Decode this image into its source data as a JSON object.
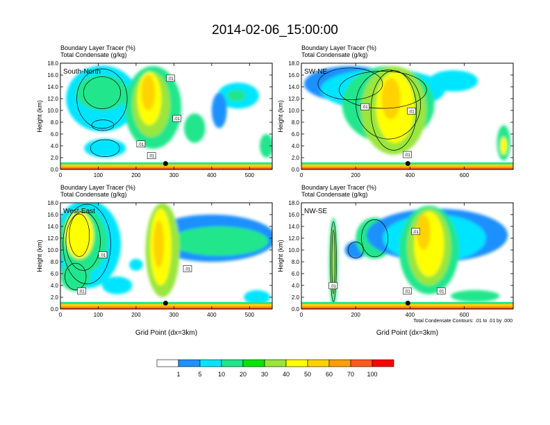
{
  "figure": {
    "title": "2014-02-06_15:00:00",
    "contour_note": "Total Condensate Contours: .01 to .01 by .000"
  },
  "colorbar": {
    "colors": [
      "#ffffff",
      "#1e90ff",
      "#00e5ff",
      "#20e68c",
      "#00e600",
      "#9ae63c",
      "#ffff00",
      "#ffd200",
      "#ffa000",
      "#ff5a1e",
      "#ff0000"
    ],
    "labels": [
      "1",
      "5",
      "10",
      "20",
      "30",
      "40",
      "50",
      "60",
      "70",
      "100"
    ]
  },
  "chart_data": [
    {
      "type": "heatmap",
      "panel_label": "South-North",
      "title_line1": "Boundary Layer Tracer   (%)",
      "title_line2": "Total Condensate   (g/kg)",
      "ylabel": "Height (km)",
      "xlabel": "",
      "xlim": [
        0,
        560
      ],
      "ylim": [
        0,
        18
      ],
      "xticks": [
        0,
        100,
        200,
        300,
        400,
        500
      ],
      "yticks": [
        "0.0",
        "2.0",
        "4.0",
        "6.0",
        "8.0",
        "10.0",
        "12.0",
        "14.0",
        "16.0",
        "18.0"
      ],
      "contour_labels": [
        ".01",
        ".01",
        ".01",
        ".01"
      ],
      "marker": {
        "x": 278,
        "y": 1.0
      },
      "blobs": [
        {
          "x": 118,
          "y": 3.6,
          "rx": 55,
          "ry": 1.6,
          "color": "#00e5ff"
        },
        {
          "x": 112,
          "y": 7.5,
          "rx": 42,
          "ry": 1.0,
          "color": "#20e68c"
        },
        {
          "x": 110,
          "y": 12.0,
          "rx": 95,
          "ry": 5.6,
          "color": "#00e5ff"
        },
        {
          "x": 110,
          "y": 13.0,
          "rx": 70,
          "ry": 3.0,
          "color": "#20e68c"
        },
        {
          "x": 245,
          "y": 10.5,
          "rx": 75,
          "ry": 7.0,
          "color": "#20e68c"
        },
        {
          "x": 240,
          "y": 11.0,
          "rx": 50,
          "ry": 5.5,
          "color": "#9ae63c"
        },
        {
          "x": 235,
          "y": 12.0,
          "rx": 32,
          "ry": 4.5,
          "color": "#ffff00"
        },
        {
          "x": 232,
          "y": 13.0,
          "rx": 18,
          "ry": 3.0,
          "color": "#ffd200"
        },
        {
          "x": 355,
          "y": 7.0,
          "rx": 28,
          "ry": 2.5,
          "color": "#20e68c"
        },
        {
          "x": 470,
          "y": 12.5,
          "rx": 55,
          "ry": 2.2,
          "color": "#00e5ff"
        },
        {
          "x": 465,
          "y": 12.5,
          "rx": 25,
          "ry": 1.0,
          "color": "#20e68c"
        },
        {
          "x": 420,
          "y": 10.0,
          "rx": 20,
          "ry": 3.0,
          "color": "#1e90ff"
        },
        {
          "x": 545,
          "y": 4.0,
          "rx": 18,
          "ry": 2.0,
          "color": "#20e68c"
        }
      ]
    },
    {
      "type": "heatmap",
      "panel_label": "SW-NE",
      "title_line1": "Boundary Layer Tracer   (%)",
      "title_line2": "Total Condensate   (g/kg)",
      "ylabel": "Height (km)",
      "xlabel": "",
      "xlim": [
        0,
        780
      ],
      "ylim": [
        0,
        18
      ],
      "xticks": [
        0,
        200,
        400,
        600
      ],
      "yticks": [
        "0.0",
        "2.0",
        "4.0",
        "6.0",
        "8.0",
        "10.0",
        "12.0",
        "14.0",
        "16.0",
        "18.0"
      ],
      "contour_labels": [
        ".01",
        ".01",
        ".01"
      ],
      "marker": {
        "x": 392,
        "y": 1.0
      },
      "blobs": [
        {
          "x": 180,
          "y": 14.5,
          "rx": 170,
          "ry": 3.0,
          "color": "#1e90ff"
        },
        {
          "x": 300,
          "y": 13.5,
          "rx": 230,
          "ry": 3.5,
          "color": "#00e5ff"
        },
        {
          "x": 320,
          "y": 11.0,
          "rx": 170,
          "ry": 6.5,
          "color": "#20e68c"
        },
        {
          "x": 340,
          "y": 10.0,
          "rx": 120,
          "ry": 7.5,
          "color": "#9ae63c"
        },
        {
          "x": 345,
          "y": 10.5,
          "rx": 70,
          "ry": 6.0,
          "color": "#ffff00"
        },
        {
          "x": 330,
          "y": 12.0,
          "rx": 35,
          "ry": 3.5,
          "color": "#ffd200"
        },
        {
          "x": 560,
          "y": 15.0,
          "rx": 90,
          "ry": 1.8,
          "color": "#00e5ff"
        },
        {
          "x": 745,
          "y": 4.5,
          "rx": 25,
          "ry": 3.0,
          "color": "#20e68c"
        },
        {
          "x": 745,
          "y": 4.0,
          "rx": 12,
          "ry": 1.5,
          "color": "#ffff00"
        }
      ]
    },
    {
      "type": "heatmap",
      "panel_label": "West-East",
      "title_line1": "Boundary Layer Tracer   (%)",
      "title_line2": "Total Condensate   (g/kg)",
      "ylabel": "Height (km)",
      "xlabel": "Grid Point (dx=3km)",
      "xlim": [
        0,
        560
      ],
      "ylim": [
        0,
        18
      ],
      "xticks": [
        0,
        100,
        200,
        300,
        400,
        500
      ],
      "yticks": [
        "0.0",
        "2.0",
        "4.0",
        "6.0",
        "8.0",
        "10.0",
        "12.0",
        "14.0",
        "16.0",
        "18.0"
      ],
      "contour_labels": [
        ".01",
        ".01",
        ".01"
      ],
      "marker": {
        "x": 278,
        "y": 1.0
      },
      "blobs": [
        {
          "x": 70,
          "y": 11.0,
          "rx": 90,
          "ry": 7.5,
          "color": "#00e5ff"
        },
        {
          "x": 60,
          "y": 11.5,
          "rx": 65,
          "ry": 5.5,
          "color": "#20e68c"
        },
        {
          "x": 50,
          "y": 12.5,
          "rx": 38,
          "ry": 4.0,
          "color": "#ffff00"
        },
        {
          "x": 40,
          "y": 5.5,
          "rx": 40,
          "ry": 2.5,
          "color": "#20e68c"
        },
        {
          "x": 150,
          "y": 4.0,
          "rx": 40,
          "ry": 1.5,
          "color": "#00e5ff"
        },
        {
          "x": 400,
          "y": 12.0,
          "rx": 170,
          "ry": 4.0,
          "color": "#1e90ff"
        },
        {
          "x": 420,
          "y": 11.5,
          "rx": 130,
          "ry": 2.5,
          "color": "#20e68c"
        },
        {
          "x": 270,
          "y": 10.0,
          "rx": 45,
          "ry": 8.0,
          "color": "#9ae63c"
        },
        {
          "x": 265,
          "y": 10.5,
          "rx": 28,
          "ry": 6.5,
          "color": "#ffff00"
        },
        {
          "x": 260,
          "y": 11.0,
          "rx": 14,
          "ry": 4.0,
          "color": "#ffd200"
        },
        {
          "x": 200,
          "y": 7.5,
          "rx": 18,
          "ry": 1.0,
          "color": "#00e5ff"
        },
        {
          "x": 520,
          "y": 2.0,
          "rx": 35,
          "ry": 1.2,
          "color": "#00e5ff"
        }
      ]
    },
    {
      "type": "heatmap",
      "panel_label": "NW-SE",
      "title_line1": "Boundary Layer Tracer   (%)",
      "title_line2": "Total Condensate   (g/kg)",
      "ylabel": "Height (km)",
      "xlabel": "Grid Point (dx=3km)",
      "xlim": [
        0,
        780
      ],
      "ylim": [
        0,
        18
      ],
      "xticks": [
        0,
        200,
        400,
        600
      ],
      "yticks": [
        "0.0",
        "2.0",
        "4.0",
        "6.0",
        "8.0",
        "10.0",
        "12.0",
        "14.0",
        "16.0",
        "18.0"
      ],
      "contour_labels": [
        ".01",
        ".01",
        ".01",
        ".01"
      ],
      "marker": {
        "x": 392,
        "y": 1.0
      },
      "blobs": [
        {
          "x": 118,
          "y": 8.0,
          "rx": 16,
          "ry": 7.5,
          "color": "#20e68c"
        },
        {
          "x": 118,
          "y": 8.0,
          "rx": 8,
          "ry": 6.0,
          "color": "#9ae63c"
        },
        {
          "x": 200,
          "y": 10.0,
          "rx": 40,
          "ry": 1.5,
          "color": "#1e90ff"
        },
        {
          "x": 270,
          "y": 12.0,
          "rx": 70,
          "ry": 3.5,
          "color": "#20e68c"
        },
        {
          "x": 500,
          "y": 12.5,
          "rx": 260,
          "ry": 4.5,
          "color": "#1e90ff"
        },
        {
          "x": 490,
          "y": 12.0,
          "rx": 190,
          "ry": 4.0,
          "color": "#00e5ff"
        },
        {
          "x": 470,
          "y": 10.0,
          "rx": 110,
          "ry": 7.5,
          "color": "#20e68c"
        },
        {
          "x": 470,
          "y": 10.5,
          "rx": 80,
          "ry": 6.5,
          "color": "#9ae63c"
        },
        {
          "x": 470,
          "y": 11.0,
          "rx": 55,
          "ry": 5.5,
          "color": "#ffff00"
        },
        {
          "x": 450,
          "y": 13.0,
          "rx": 25,
          "ry": 3.0,
          "color": "#ffd200"
        },
        {
          "x": 640,
          "y": 2.2,
          "rx": 90,
          "ry": 1.0,
          "color": "#20e68c"
        }
      ]
    }
  ]
}
